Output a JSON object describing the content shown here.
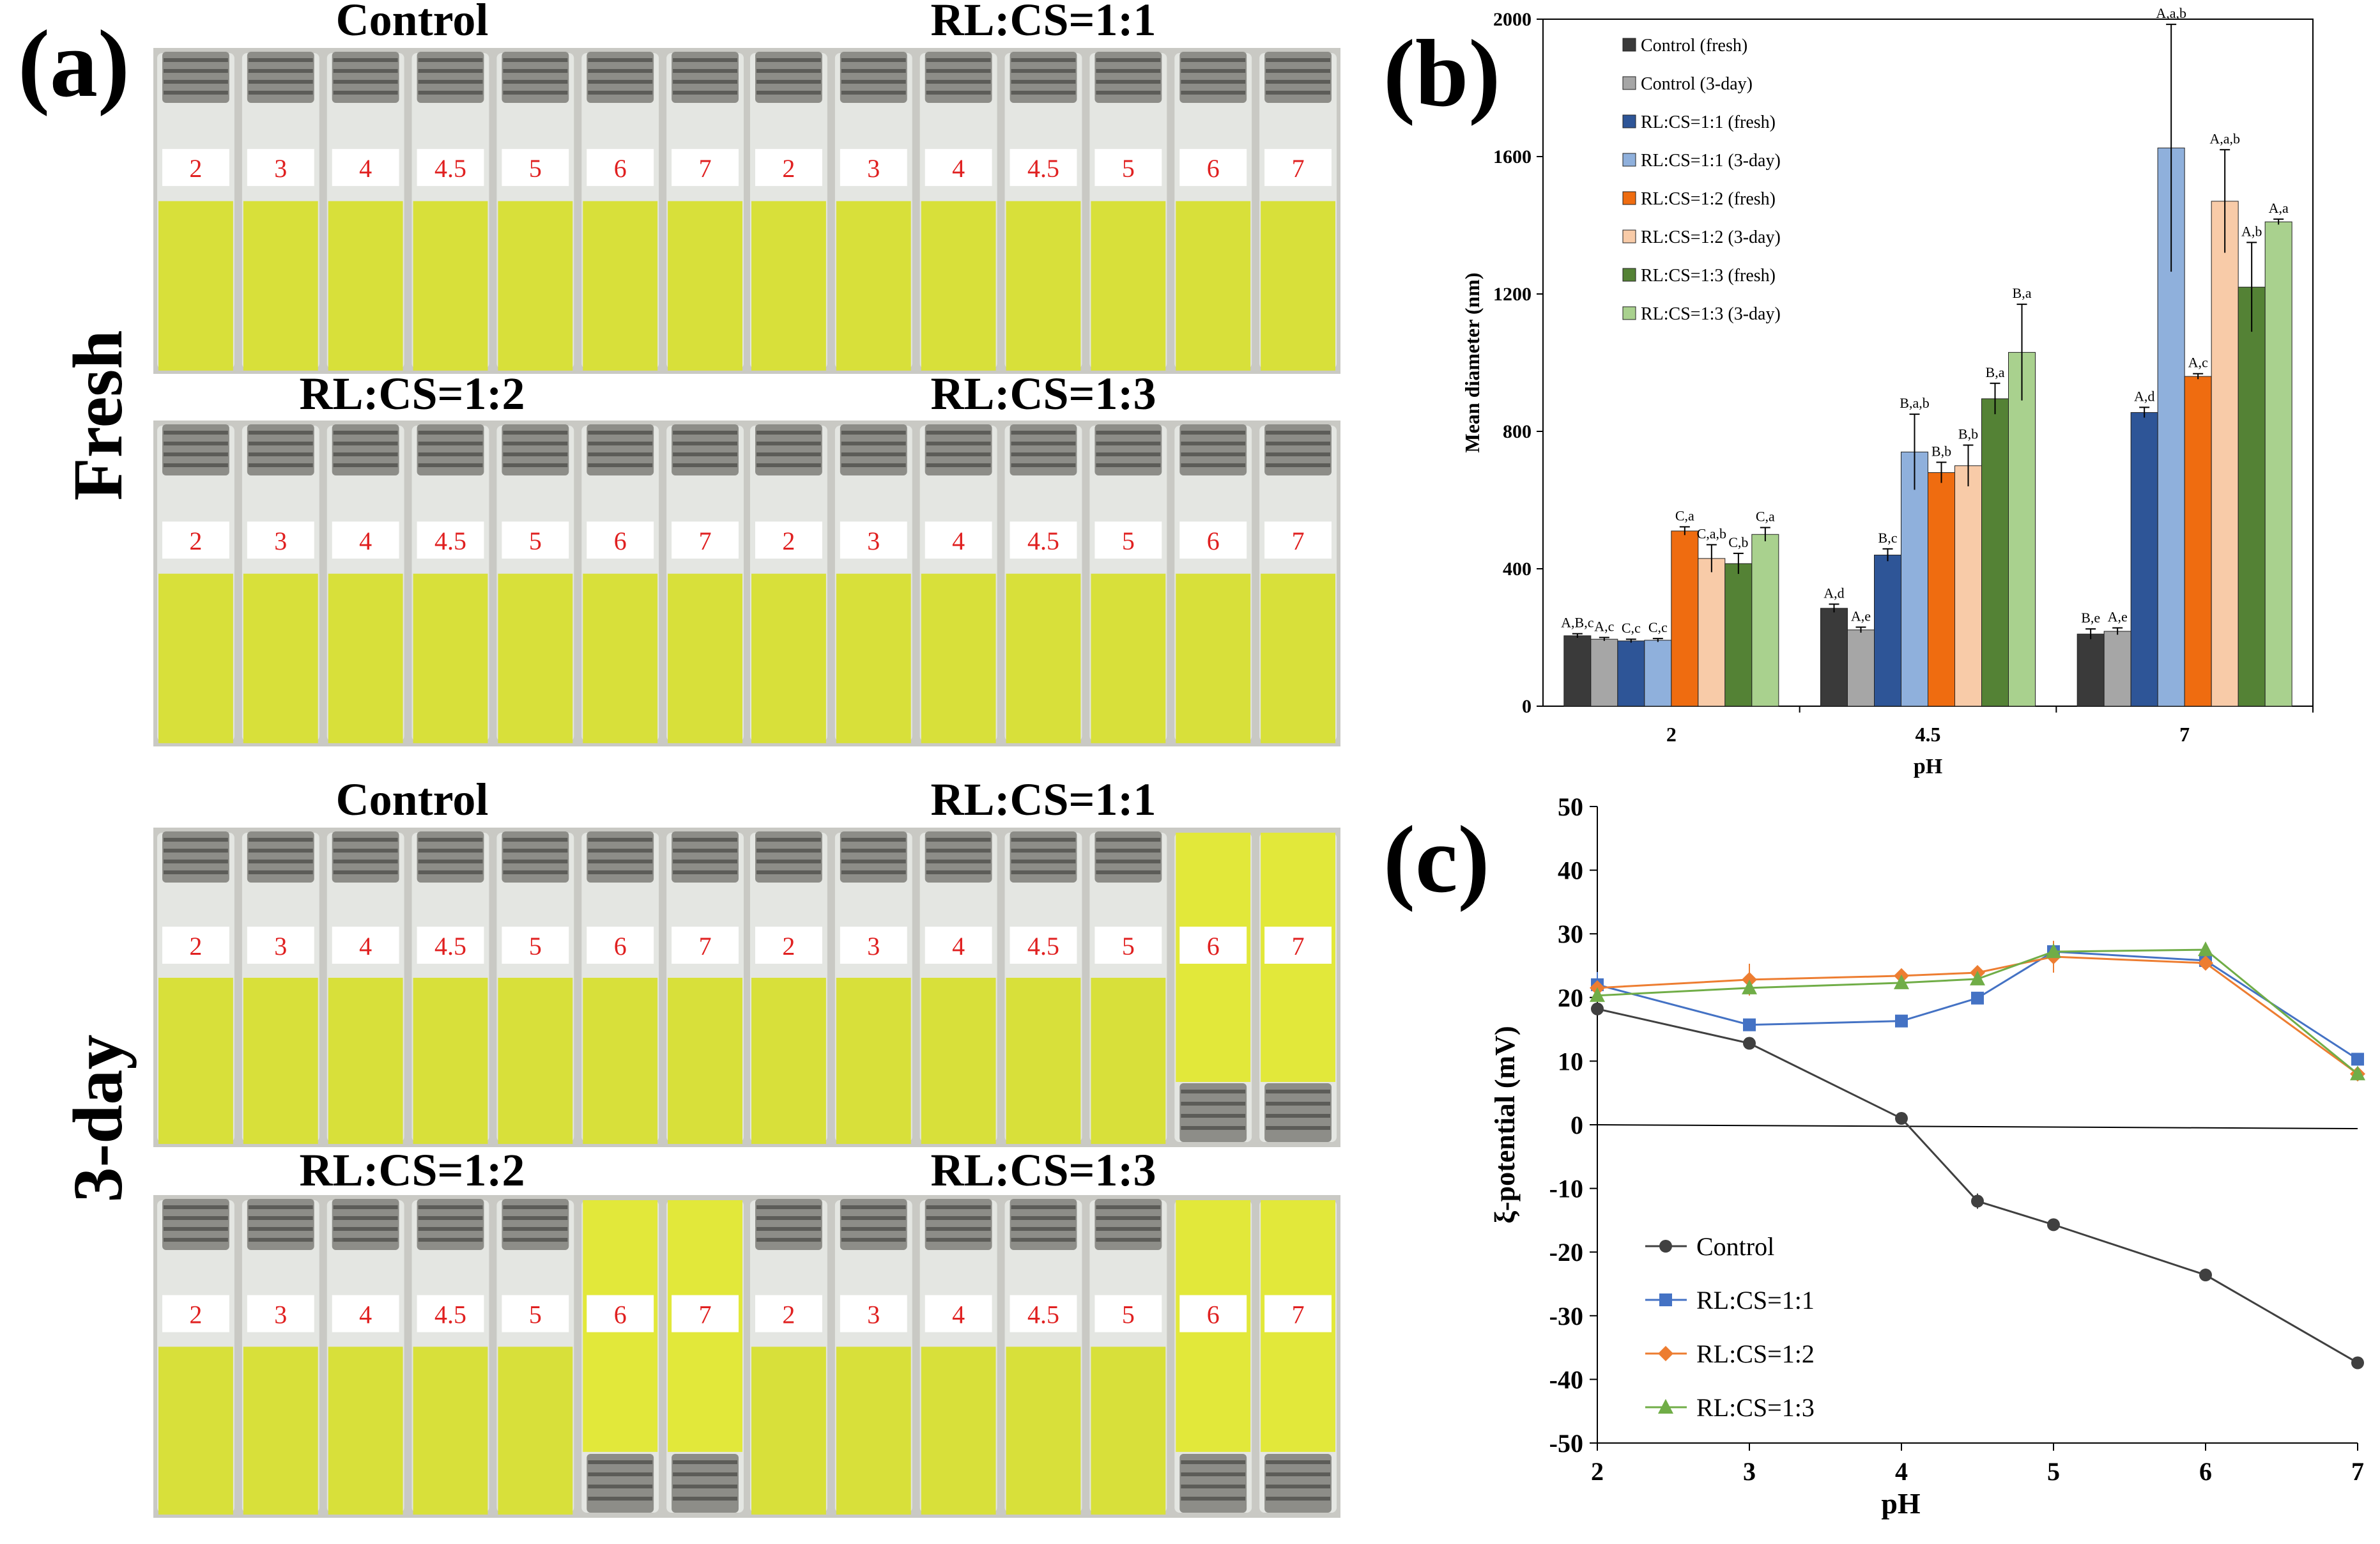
{
  "panel_labels": {
    "a": "(a)",
    "b": "(b)",
    "c": "(c)"
  },
  "photo": {
    "row_labels": [
      "Fresh",
      "3-day"
    ],
    "panels": [
      {
        "title": "Control",
        "labels": [
          "2",
          "3",
          "4",
          "4.5",
          "5",
          "6",
          "7"
        ],
        "inverted": [
          false,
          false,
          false,
          false,
          false,
          false,
          false
        ]
      },
      {
        "title": "RL:CS=1:1",
        "labels": [
          "2",
          "3",
          "4",
          "4.5",
          "5",
          "6",
          "7"
        ],
        "inverted": [
          false,
          false,
          false,
          false,
          false,
          false,
          false
        ]
      },
      {
        "title": "RL:CS=1:2",
        "labels": [
          "2",
          "3",
          "4",
          "4.5",
          "5",
          "6",
          "7"
        ],
        "inverted": [
          false,
          false,
          false,
          false,
          false,
          false,
          false
        ]
      },
      {
        "title": "RL:CS=1:3",
        "labels": [
          "2",
          "3",
          "4",
          "4.5",
          "5",
          "6",
          "7"
        ],
        "inverted": [
          false,
          false,
          false,
          false,
          false,
          false,
          false
        ]
      },
      {
        "title": "Control",
        "labels": [
          "2",
          "3",
          "4",
          "4.5",
          "5",
          "6",
          "7"
        ],
        "inverted": [
          false,
          false,
          false,
          false,
          false,
          false,
          false
        ]
      },
      {
        "title": "RL:CS=1:1",
        "labels": [
          "2",
          "3",
          "4",
          "4.5",
          "5",
          "6",
          "7"
        ],
        "inverted": [
          false,
          false,
          false,
          false,
          false,
          true,
          true
        ]
      },
      {
        "title": "RL:CS=1:2",
        "labels": [
          "2",
          "3",
          "4",
          "4.5",
          "5",
          "6",
          "7"
        ],
        "inverted": [
          false,
          false,
          false,
          false,
          false,
          true,
          true
        ]
      },
      {
        "title": "RL:CS=1:3",
        "labels": [
          "2",
          "3",
          "4",
          "4.5",
          "5",
          "6",
          "7"
        ],
        "inverted": [
          false,
          false,
          false,
          false,
          false,
          true,
          true
        ]
      }
    ],
    "colors": {
      "liquid": "#d8e03a",
      "label_text": "#e02020"
    }
  },
  "chart_data": [
    {
      "type": "bar",
      "title": "",
      "xlabel": "pH",
      "ylabel": "Mean diameter (nm)",
      "ylim": [
        0,
        2000
      ],
      "yticks": [
        "0",
        "400",
        "800",
        "1200",
        "1600",
        "2000"
      ],
      "categories": [
        "2",
        "4.5",
        "7"
      ],
      "legend_position": "top-left",
      "series": [
        {
          "name": "Control (fresh)",
          "color": "#3a3a3a",
          "values": [
            205,
            285,
            210
          ],
          "errors": [
            6,
            12,
            15
          ],
          "letters": [
            "A,B,c",
            "A,d",
            "B,e"
          ]
        },
        {
          "name": "Control (3-day)",
          "color": "#a6a6a6",
          "values": [
            195,
            222,
            218
          ],
          "errors": [
            5,
            8,
            10
          ],
          "letters": [
            "A,c",
            "A,e",
            "A,e"
          ]
        },
        {
          "name": "RL:CS=1:1 (fresh)",
          "color": "#2e5597",
          "values": [
            190,
            440,
            855
          ],
          "errors": [
            5,
            18,
            15
          ],
          "letters": [
            "C,c",
            "B,c",
            "A,d"
          ]
        },
        {
          "name": "RL:CS=1:1 (3-day)",
          "color": "#8fb0dc",
          "values": [
            192,
            740,
            1625
          ],
          "errors": [
            5,
            110,
            360
          ],
          "letters": [
            "C,c",
            "B,a,b",
            "A,a,b"
          ]
        },
        {
          "name": "RL:CS=1:2 (fresh)",
          "color": "#ef6c10",
          "values": [
            510,
            680,
            960
          ],
          "errors": [
            12,
            30,
            8
          ],
          "letters": [
            "C,a",
            "B,b",
            "A,c"
          ]
        },
        {
          "name": "RL:CS=1:2 (3-day)",
          "color": "#f8cba8",
          "values": [
            430,
            700,
            1470
          ],
          "errors": [
            40,
            60,
            150
          ],
          "letters": [
            "C,a,b",
            "B,b",
            "A,a,b"
          ]
        },
        {
          "name": "RL:CS=1:3 (fresh)",
          "color": "#548235",
          "values": [
            415,
            895,
            1220
          ],
          "errors": [
            30,
            45,
            130
          ],
          "letters": [
            "C,b",
            "B,a",
            "A,b"
          ]
        },
        {
          "name": "RL:CS=1:3 (3-day)",
          "color": "#a9d18e",
          "values": [
            500,
            1030,
            1410
          ],
          "errors": [
            20,
            140,
            8
          ],
          "letters": [
            "C,a",
            "B,a",
            "A,a"
          ]
        }
      ]
    },
    {
      "type": "line",
      "title": "",
      "xlabel": "pH",
      "ylabel": "ξ-potential (mV)",
      "xlim": [
        2,
        7
      ],
      "ylim": [
        -50,
        50
      ],
      "xticks": [
        "2",
        "3",
        "4",
        "5",
        "6",
        "7"
      ],
      "yticks": [
        "50",
        "40",
        "30",
        "20",
        "10",
        "0",
        "-10",
        "-20",
        "-30",
        "-40",
        "-50"
      ],
      "x": [
        2,
        3,
        4,
        4.5,
        5,
        6,
        7
      ],
      "legend_position": "bottom-left",
      "series": [
        {
          "name": "Control",
          "color": "#404040",
          "marker": "circle",
          "values": [
            18.2,
            12.8,
            1.0,
            -12.0,
            -15.7,
            -23.6,
            -37.4
          ],
          "errors": [
            0.6,
            0.5,
            0.4,
            1.2,
            0.5,
            0.5,
            0.5
          ]
        },
        {
          "name": "RL:CS=1:1",
          "color": "#4472c4",
          "marker": "square",
          "values": [
            22.0,
            15.7,
            16.3,
            19.9,
            27.2,
            25.8,
            10.3
          ],
          "errors": [
            2.0,
            0.6,
            0.6,
            0.5,
            0.8,
            0.6,
            0.5
          ]
        },
        {
          "name": "RL:CS=1:2",
          "color": "#ed7d31",
          "marker": "diamond",
          "values": [
            21.5,
            22.8,
            23.4,
            23.9,
            26.4,
            25.4,
            8.0
          ],
          "errors": [
            1.0,
            2.5,
            1.0,
            1.0,
            2.5,
            0.8,
            0.5
          ]
        },
        {
          "name": "RL:CS=1:3",
          "color": "#70ad47",
          "marker": "triangle",
          "values": [
            20.3,
            21.5,
            22.3,
            22.9,
            27.2,
            27.5,
            8.0
          ],
          "errors": [
            1.0,
            1.0,
            0.8,
            0.8,
            0.8,
            0.5,
            0.5
          ]
        }
      ]
    }
  ]
}
